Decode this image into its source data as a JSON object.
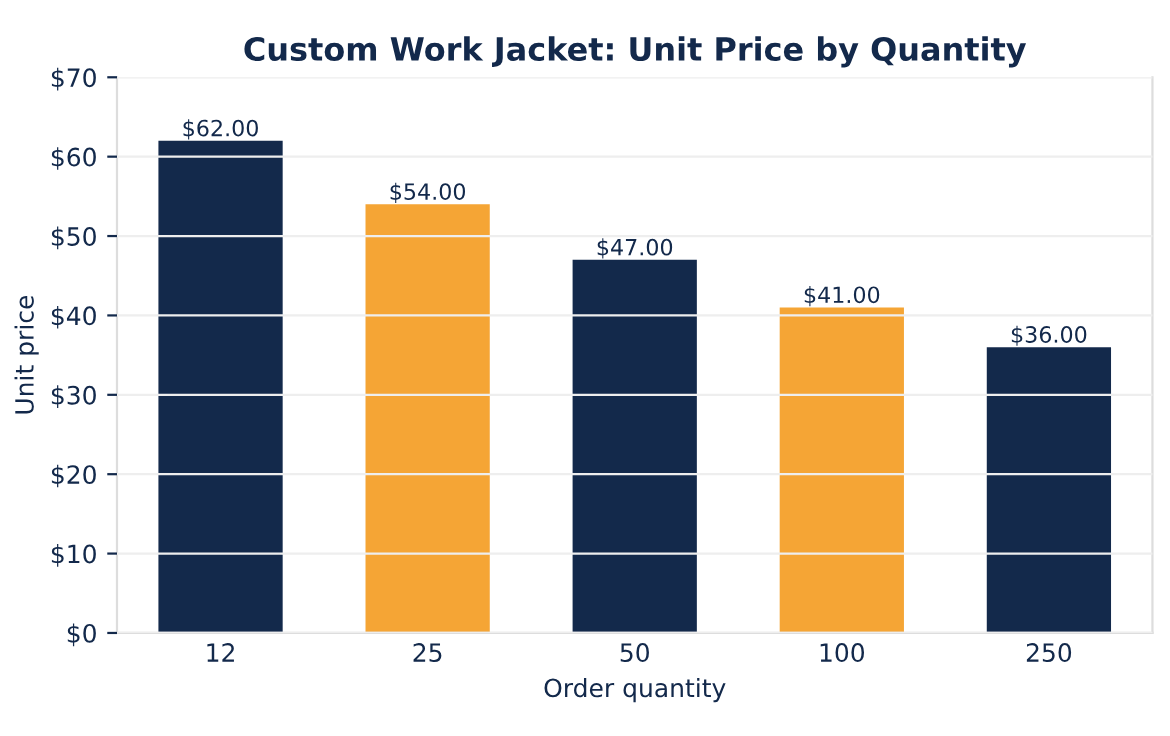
{
  "chart_data": {
    "type": "bar",
    "title": "Custom Work Jacket: Unit Price by Quantity",
    "xlabel": "Order quantity",
    "ylabel": "Unit price",
    "categories": [
      "12",
      "25",
      "50",
      "100",
      "250"
    ],
    "values": [
      62,
      54,
      47,
      41,
      36
    ],
    "colors": [
      "#13294b",
      "#f5a535",
      "#13294b",
      "#f5a535",
      "#13294b"
    ],
    "value_labels": [
      "$62.00",
      "$54.00",
      "$47.00",
      "$41.00",
      "$36.00"
    ],
    "ylim": [
      0,
      70
    ],
    "yticks": [
      {
        "value": 0,
        "label": "$0"
      },
      {
        "value": 10,
        "label": "$10"
      },
      {
        "value": 20,
        "label": "$20"
      },
      {
        "value": 30,
        "label": "$30"
      },
      {
        "value": 40,
        "label": "$40"
      },
      {
        "value": 50,
        "label": "$50"
      },
      {
        "value": 60,
        "label": "$60"
      },
      {
        "value": 70,
        "label": "$70"
      }
    ],
    "grid": "y"
  }
}
